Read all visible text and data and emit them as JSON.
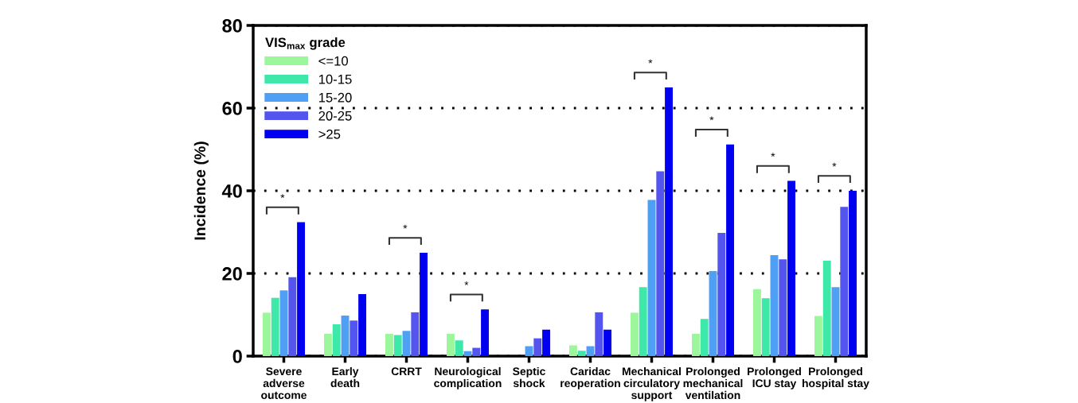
{
  "chart_data": {
    "type": "bar",
    "ylabel": "Incidence (%)",
    "legend_title": "VIS$_{max}$ grade",
    "categories": [
      "Severe\nadverse\noutcome",
      "Early\ndeath",
      "CRRT",
      "Neurological\ncomplication",
      "Septic\nshock",
      "Caridac\nreoperation",
      "Mechanical\ncirculatory\nsupport",
      "Prolonged\nmechanical\nventilation",
      "Prolonged\nICU stay",
      "Prolonged\nhospital stay"
    ],
    "series": [
      {
        "name": "<=10",
        "color": "#9cf79c",
        "values": [
          10.5,
          5.4,
          5.4,
          5.4,
          0,
          2.6,
          10.5,
          5.4,
          16.2,
          9.7
        ]
      },
      {
        "name": "10-15",
        "color": "#3de8a8",
        "values": [
          14.1,
          7.7,
          5.1,
          3.8,
          0,
          1.3,
          16.7,
          9.0,
          14.0,
          23.1
        ]
      },
      {
        "name": "15-20",
        "color": "#4f9ff5",
        "values": [
          15.9,
          9.8,
          6.1,
          1.2,
          2.4,
          2.4,
          37.8,
          20.6,
          24.4,
          16.7
        ]
      },
      {
        "name": "20-25",
        "color": "#5454ee",
        "values": [
          19.1,
          8.6,
          10.6,
          2.0,
          4.3,
          10.6,
          44.7,
          29.8,
          23.4,
          36.1
        ]
      },
      {
        "name": ">25",
        "color": "#0000f0",
        "values": [
          32.4,
          15.0,
          25.0,
          11.3,
          6.4,
          6.4,
          65.0,
          51.2,
          42.4,
          40.0
        ]
      }
    ],
    "ylim": [
      0,
      80
    ],
    "yticks": [
      0,
      20,
      40,
      60,
      80
    ],
    "grid": "y",
    "legend": "top left",
    "annotations": [
      "*",
      null,
      "*",
      "*",
      null,
      null,
      "*",
      "*",
      "*",
      "*"
    ]
  }
}
